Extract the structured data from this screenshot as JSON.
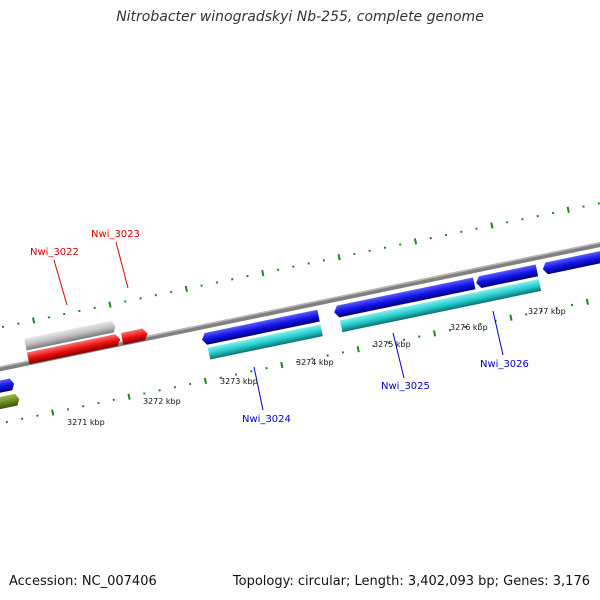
{
  "title": "Nitrobacter winogradskyi Nb-255, complete genome",
  "footer": {
    "accession": "Accession: NC_007406",
    "summary": "Topology: circular; Length: 3,402,093 bp; Genes: 3,176"
  },
  "colors": {
    "backbone": "#808080",
    "tick": "#1a8a1a",
    "blue": "#1414e6",
    "cyan": "#20c8c8",
    "red": "#ee1111",
    "gray": "#c0c0c0",
    "olive": "#6b8e23",
    "label_red": "#dd0000",
    "label_blue": "#0000cc"
  },
  "scale_ticks": [
    {
      "label": "3271 kbp"
    },
    {
      "label": "3272 kbp"
    },
    {
      "label": "3273 kbp"
    },
    {
      "label": "3274 kbp"
    },
    {
      "label": "3275 kbp"
    },
    {
      "label": "3276 kbp"
    },
    {
      "label": "3277 kbp"
    }
  ],
  "gene_labels": [
    {
      "text": "Nwi_3022",
      "color": "red"
    },
    {
      "text": "Nwi_3023",
      "color": "red"
    },
    {
      "text": "Nwi_3024",
      "color": "blue"
    },
    {
      "text": "Nwi_3025",
      "color": "blue"
    },
    {
      "text": "Nwi_3026",
      "color": "blue"
    }
  ]
}
